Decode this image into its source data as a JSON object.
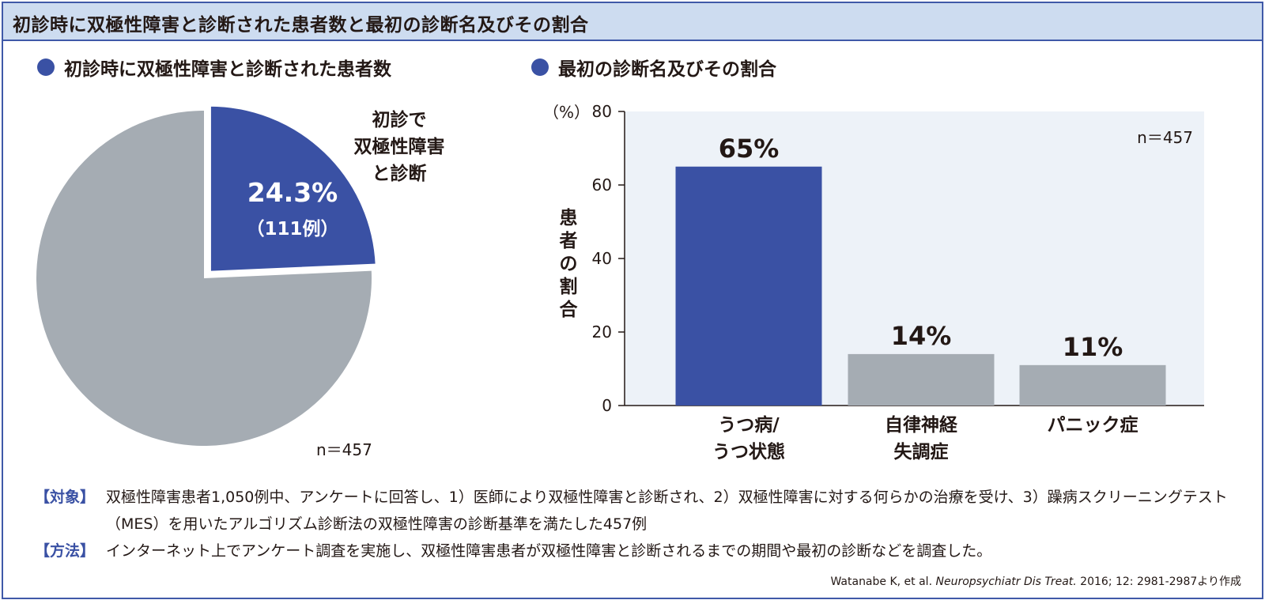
{
  "header": {
    "title": "初診時に双極性障害と診断された患者数と最初の診断名及びその割合"
  },
  "left_section": {
    "title": "初診時に双極性障害と診断された患者数"
  },
  "right_section": {
    "title": "最初の診断名及びその割合"
  },
  "colors": {
    "accent": "#3a51a4",
    "gray": "#a5acb3",
    "plot_bg": "#edf2f8",
    "header_bg": "#cddcf0"
  },
  "chart_data": [
    {
      "type": "pie",
      "slices": [
        {
          "label": "初診で双極性障害と診断",
          "label_lines": [
            "初診で",
            "双極性障害",
            "と診断"
          ],
          "value": 24.3,
          "value_label": "24.3%",
          "count_label": "（111例）",
          "color": "#3a51a4",
          "exploded": true
        },
        {
          "label": "",
          "value": 75.7,
          "color": "#a5acb3"
        }
      ],
      "n_label": "n＝457"
    },
    {
      "type": "bar",
      "categories": [
        "うつ病/うつ状態",
        "自律神経失調症",
        "パニック症"
      ],
      "category_lines": [
        [
          "うつ病/",
          "うつ状態"
        ],
        [
          "自律神経",
          "失調症"
        ],
        [
          "パニック症"
        ]
      ],
      "values": [
        65,
        14,
        11
      ],
      "value_labels": [
        "65%",
        "14%",
        "11%"
      ],
      "bar_colors": [
        "#3a51a4",
        "#a5acb3",
        "#a5acb3"
      ],
      "ylabel": "患者の割合",
      "ylabel_chars": [
        "患",
        "者",
        "の",
        "割",
        "合"
      ],
      "y_unit": "（%）",
      "ylim": [
        0,
        80
      ],
      "yticks": [
        0,
        20,
        40,
        60,
        80
      ],
      "n_label": "n＝457"
    }
  ],
  "notes": [
    {
      "tag": "【対象】",
      "text": "双極性障害患者1,050例中、アンケートに回答し、1）医師により双極性障害と診断され、2）双極性障害に対する何らかの治療を受け、3）躁病スクリーニングテスト（MES）を用いたアルゴリズム診断法の双極性障害の診断基準を満たした457例"
    },
    {
      "tag": "【方法】",
      "text": "インターネット上でアンケート調査を実施し、双極性障害患者が双極性障害と診断されるまでの期間や最初の診断などを調査した。"
    }
  ],
  "citation": {
    "authors": "Watanabe K, et al.",
    "journal": "Neuropsychiatr Dis Treat.",
    "details": " 2016; 12: 2981-2987より作成"
  }
}
